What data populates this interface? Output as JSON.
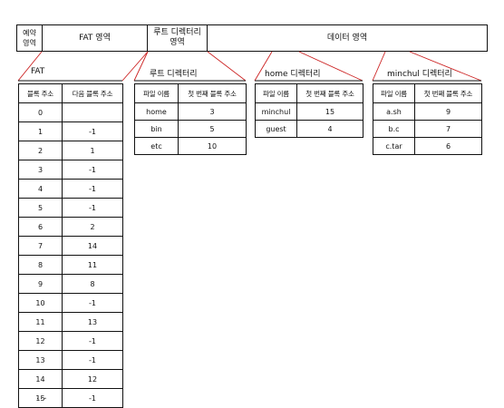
{
  "disk": {
    "reserved": "예약\n영역",
    "fat": "FAT 영역",
    "root": "루트 디렉터리\n영역",
    "data": "데이터 영역"
  },
  "fat_table": {
    "title": "FAT",
    "headers": [
      "블록 주소",
      "다음 블록 주소"
    ],
    "rows": [
      [
        "0",
        ""
      ],
      [
        "1",
        "-1"
      ],
      [
        "2",
        "1"
      ],
      [
        "3",
        "-1"
      ],
      [
        "4",
        "-1"
      ],
      [
        "5",
        "-1"
      ],
      [
        "6",
        "2"
      ],
      [
        "7",
        "14"
      ],
      [
        "8",
        "11"
      ],
      [
        "9",
        "8"
      ],
      [
        "10",
        "-1"
      ],
      [
        "11",
        "13"
      ],
      [
        "12",
        "-1"
      ],
      [
        "13",
        "-1"
      ],
      [
        "14",
        "12"
      ],
      [
        "15",
        "-1"
      ]
    ],
    "ellipsis": "..."
  },
  "root_table": {
    "title": "루트 디렉터리",
    "headers": [
      "파일 이름",
      "첫 번째 블록 주소"
    ],
    "rows": [
      [
        "home",
        "3"
      ],
      [
        "bin",
        "5"
      ],
      [
        "etc",
        "10"
      ]
    ]
  },
  "home_table": {
    "title": "home 디렉터리",
    "headers": [
      "파일 이름",
      "첫 번째 블록 주소"
    ],
    "rows": [
      [
        "minchul",
        "15"
      ],
      [
        "guest",
        "4"
      ]
    ]
  },
  "minchul_table": {
    "title": "minchul 디렉터리",
    "headers": [
      "파일 이름",
      "첫 번째 블록 주소"
    ],
    "rows": [
      [
        "a.sh",
        "9"
      ],
      [
        "b.c",
        "7"
      ],
      [
        "c.tar",
        "6"
      ]
    ]
  },
  "colors": {
    "connector": "#cc2222",
    "line": "#111111"
  }
}
